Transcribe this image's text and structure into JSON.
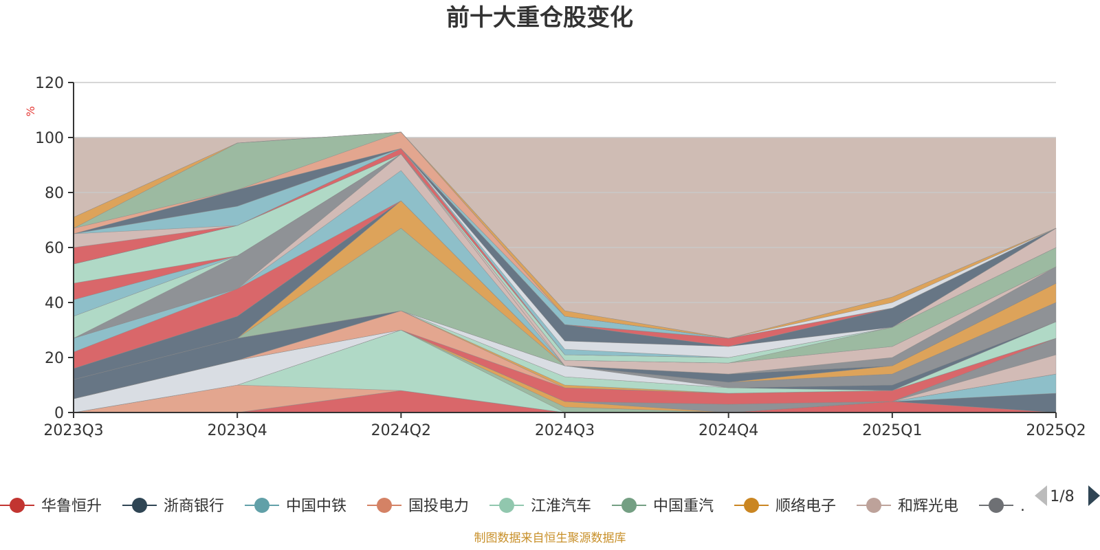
{
  "chart_data": {
    "type": "area",
    "title": "前十大重仓股变化",
    "ylabel": "%",
    "ylim": [
      0,
      120
    ],
    "yticks": [
      "0",
      "20",
      "40",
      "60",
      "80",
      "100",
      "120"
    ],
    "categories": [
      "2023Q3",
      "2023Q4",
      "2024Q2",
      "2024Q3",
      "2024Q4",
      "2025Q1",
      "2025Q2"
    ],
    "stacked": true,
    "background_band": {
      "from": 0,
      "to": 100,
      "color": "#cfbcb4"
    },
    "series": [
      {
        "name": "华鲁恒升",
        "color": "#d9676a",
        "values": [
          0,
          0,
          8,
          0,
          0,
          4,
          0
        ]
      },
      {
        "name": "浙商银行",
        "color": "#677685",
        "values": [
          0,
          0,
          0,
          0,
          0,
          0,
          7
        ]
      },
      {
        "name": "中国中铁",
        "color": "#8ebfc9",
        "values": [
          0,
          0,
          0,
          0,
          0,
          0,
          7
        ]
      },
      {
        "name": "国投电力",
        "color": "#e3a68f",
        "values": [
          0,
          10,
          0,
          0,
          0,
          0,
          0
        ]
      },
      {
        "name": "江淮汽车",
        "color": "#b0d9c6",
        "values": [
          0,
          0,
          22,
          0,
          0,
          0,
          0
        ]
      },
      {
        "name": "中国重汽",
        "color": "#9cbaa1",
        "values": [
          0,
          0,
          0,
          2,
          0,
          0,
          0
        ]
      },
      {
        "name": "顺络电子",
        "color": "#dda35a",
        "values": [
          0,
          0,
          0,
          2,
          0,
          0,
          0
        ]
      },
      {
        "name": "和辉光电",
        "color": "#d2bbb6",
        "values": [
          0,
          0,
          0,
          0,
          0,
          0,
          7
        ]
      },
      {
        "name": "",
        "color": "#8f9296",
        "values": [
          0,
          0,
          0,
          0,
          3,
          0,
          6
        ]
      },
      {
        "name": "",
        "color": "#d9dde3",
        "values": [
          5,
          9,
          0,
          0,
          0,
          0,
          0
        ]
      },
      {
        "name": "",
        "color": "#8ebfc9",
        "values": [
          0,
          0,
          0,
          0,
          0,
          0,
          0
        ]
      },
      {
        "name": "",
        "color": "#d9676a",
        "values": [
          0,
          0,
          0,
          5,
          4,
          4,
          0
        ]
      },
      {
        "name": "",
        "color": "#e3a68f",
        "values": [
          0,
          0,
          7,
          0,
          0,
          0,
          0
        ]
      },
      {
        "name": "",
        "color": "#d9dde3",
        "values": [
          0,
          0,
          0,
          0,
          0,
          0,
          0
        ]
      },
      {
        "name": "",
        "color": "#dda35a",
        "values": [
          0,
          0,
          0,
          1,
          0,
          0,
          0
        ]
      },
      {
        "name": "",
        "color": "#b0d9c6",
        "values": [
          0,
          0,
          0,
          3,
          2,
          0,
          6
        ]
      },
      {
        "name": "",
        "color": "#677685",
        "values": [
          7,
          8,
          0,
          0,
          0,
          2,
          0
        ]
      },
      {
        "name": "",
        "color": "#d9dde3",
        "values": [
          0,
          0,
          0,
          4,
          0,
          0,
          0
        ]
      },
      {
        "name": "",
        "color": "#8f9296",
        "values": [
          0,
          0,
          0,
          0,
          2,
          4,
          7
        ]
      },
      {
        "name": "",
        "color": "#d9676a",
        "values": [
          0,
          0,
          0,
          0,
          0,
          0,
          0
        ]
      },
      {
        "name": "",
        "color": "#9cbaa1",
        "values": [
          0,
          0,
          30,
          0,
          0,
          0,
          0
        ]
      },
      {
        "name": "",
        "color": "#dda35a",
        "values": [
          0,
          0,
          10,
          0,
          0,
          3,
          7
        ]
      },
      {
        "name": "",
        "color": "#e3a68f",
        "values": [
          0,
          0,
          0,
          0,
          0,
          0,
          0
        ]
      },
      {
        "name": "",
        "color": "#677685",
        "values": [
          4,
          8,
          0,
          0,
          3,
          0,
          0
        ]
      },
      {
        "name": "",
        "color": "#d9676a",
        "values": [
          6,
          10,
          0,
          0,
          0,
          0,
          0
        ]
      },
      {
        "name": "",
        "color": "#8ebfc9",
        "values": [
          5,
          0,
          11,
          0,
          0,
          0,
          0
        ]
      },
      {
        "name": "",
        "color": "#d2bbb6",
        "values": [
          0,
          0,
          6,
          0,
          0,
          0,
          0
        ]
      },
      {
        "name": "",
        "color": "#8f9296",
        "values": [
          0,
          12,
          0,
          0,
          0,
          3,
          6
        ]
      },
      {
        "name": "",
        "color": "#b0d9c6",
        "values": [
          8,
          0,
          0,
          0,
          0,
          0,
          0
        ]
      },
      {
        "name": "",
        "color": "#d2bbb6",
        "values": [
          0,
          0,
          0,
          2,
          4,
          4,
          0
        ]
      },
      {
        "name": "",
        "color": "#8ebfc9",
        "values": [
          6,
          0,
          0,
          0,
          0,
          0,
          0
        ]
      },
      {
        "name": "",
        "color": "#9cbaa1",
        "values": [
          0,
          0,
          0,
          0,
          0,
          7,
          7
        ]
      },
      {
        "name": "",
        "color": "#d9676a",
        "values": [
          6,
          0,
          0,
          0,
          0,
          0,
          0
        ]
      },
      {
        "name": "",
        "color": "#b0d9c6",
        "values": [
          7,
          11,
          0,
          2,
          2,
          0,
          0
        ]
      },
      {
        "name": "",
        "color": "#d2bbb6",
        "values": [
          0,
          0,
          0,
          0,
          0,
          0,
          7
        ]
      },
      {
        "name": "",
        "color": "#d9676a",
        "values": [
          0,
          0,
          2,
          0,
          0,
          0,
          0
        ]
      },
      {
        "name": "",
        "color": "#8ebfc9",
        "values": [
          0,
          0,
          0,
          2,
          0,
          0,
          0
        ]
      },
      {
        "name": "",
        "color": "#d9dde3",
        "values": [
          0,
          0,
          0,
          3,
          4,
          0,
          0
        ]
      },
      {
        "name": "",
        "color": "#677685",
        "values": [
          0,
          0,
          0,
          6,
          0,
          7,
          0
        ]
      },
      {
        "name": "",
        "color": "#d9676a",
        "values": [
          0,
          0,
          0,
          0,
          3,
          0,
          0
        ]
      },
      {
        "name": "",
        "color": "#d2bbb6",
        "values": [
          0,
          0,
          0,
          0,
          0,
          0,
          0
        ]
      },
      {
        "name": "",
        "color": "#d9676a",
        "values": [
          6,
          0,
          0,
          0,
          0,
          0,
          0
        ]
      },
      {
        "name": "",
        "color": "#d2bbb6",
        "values": [
          5,
          0,
          0,
          0,
          0,
          0,
          0
        ]
      },
      {
        "name": "",
        "color": "#8ebfc9",
        "values": [
          0,
          7,
          0,
          3,
          0,
          0,
          0
        ]
      },
      {
        "name": "",
        "color": "#677685",
        "values": [
          0,
          6,
          0,
          0,
          0,
          0,
          0
        ]
      },
      {
        "name": "",
        "color": "#e3a68f",
        "values": [
          2,
          0,
          6,
          0,
          0,
          0,
          0
        ]
      },
      {
        "name": "",
        "color": "#9cbaa1",
        "values": [
          0,
          17,
          0,
          0,
          0,
          0,
          0
        ]
      },
      {
        "name": "",
        "color": "#d9dde3",
        "values": [
          0,
          0,
          0,
          0,
          0,
          2,
          0
        ]
      },
      {
        "name": "",
        "color": "#dda35a",
        "values": [
          4,
          0,
          0,
          2,
          0,
          2,
          0
        ]
      },
      {
        "name": "",
        "color": "#e3a68f",
        "values": [
          0,
          0,
          0,
          0,
          0,
          0,
          0
        ]
      }
    ]
  },
  "legend": {
    "items": [
      {
        "label": "华鲁恒升",
        "color": "#c23531"
      },
      {
        "label": "浙商银行",
        "color": "#2f4554"
      },
      {
        "label": "中国中铁",
        "color": "#61a0a8"
      },
      {
        "label": "国投电力",
        "color": "#d48265"
      },
      {
        "label": "江淮汽车",
        "color": "#91c7ae"
      },
      {
        "label": "中国重汽",
        "color": "#749f83"
      },
      {
        "label": "顺络电子",
        "color": "#ca8622"
      },
      {
        "label": "和辉光电",
        "color": "#bda29a"
      },
      {
        "label": ".",
        "color": "#6e7074"
      }
    ],
    "page_indicator": "1/8"
  },
  "source_note": "制图数据来自恒生聚源数据库"
}
